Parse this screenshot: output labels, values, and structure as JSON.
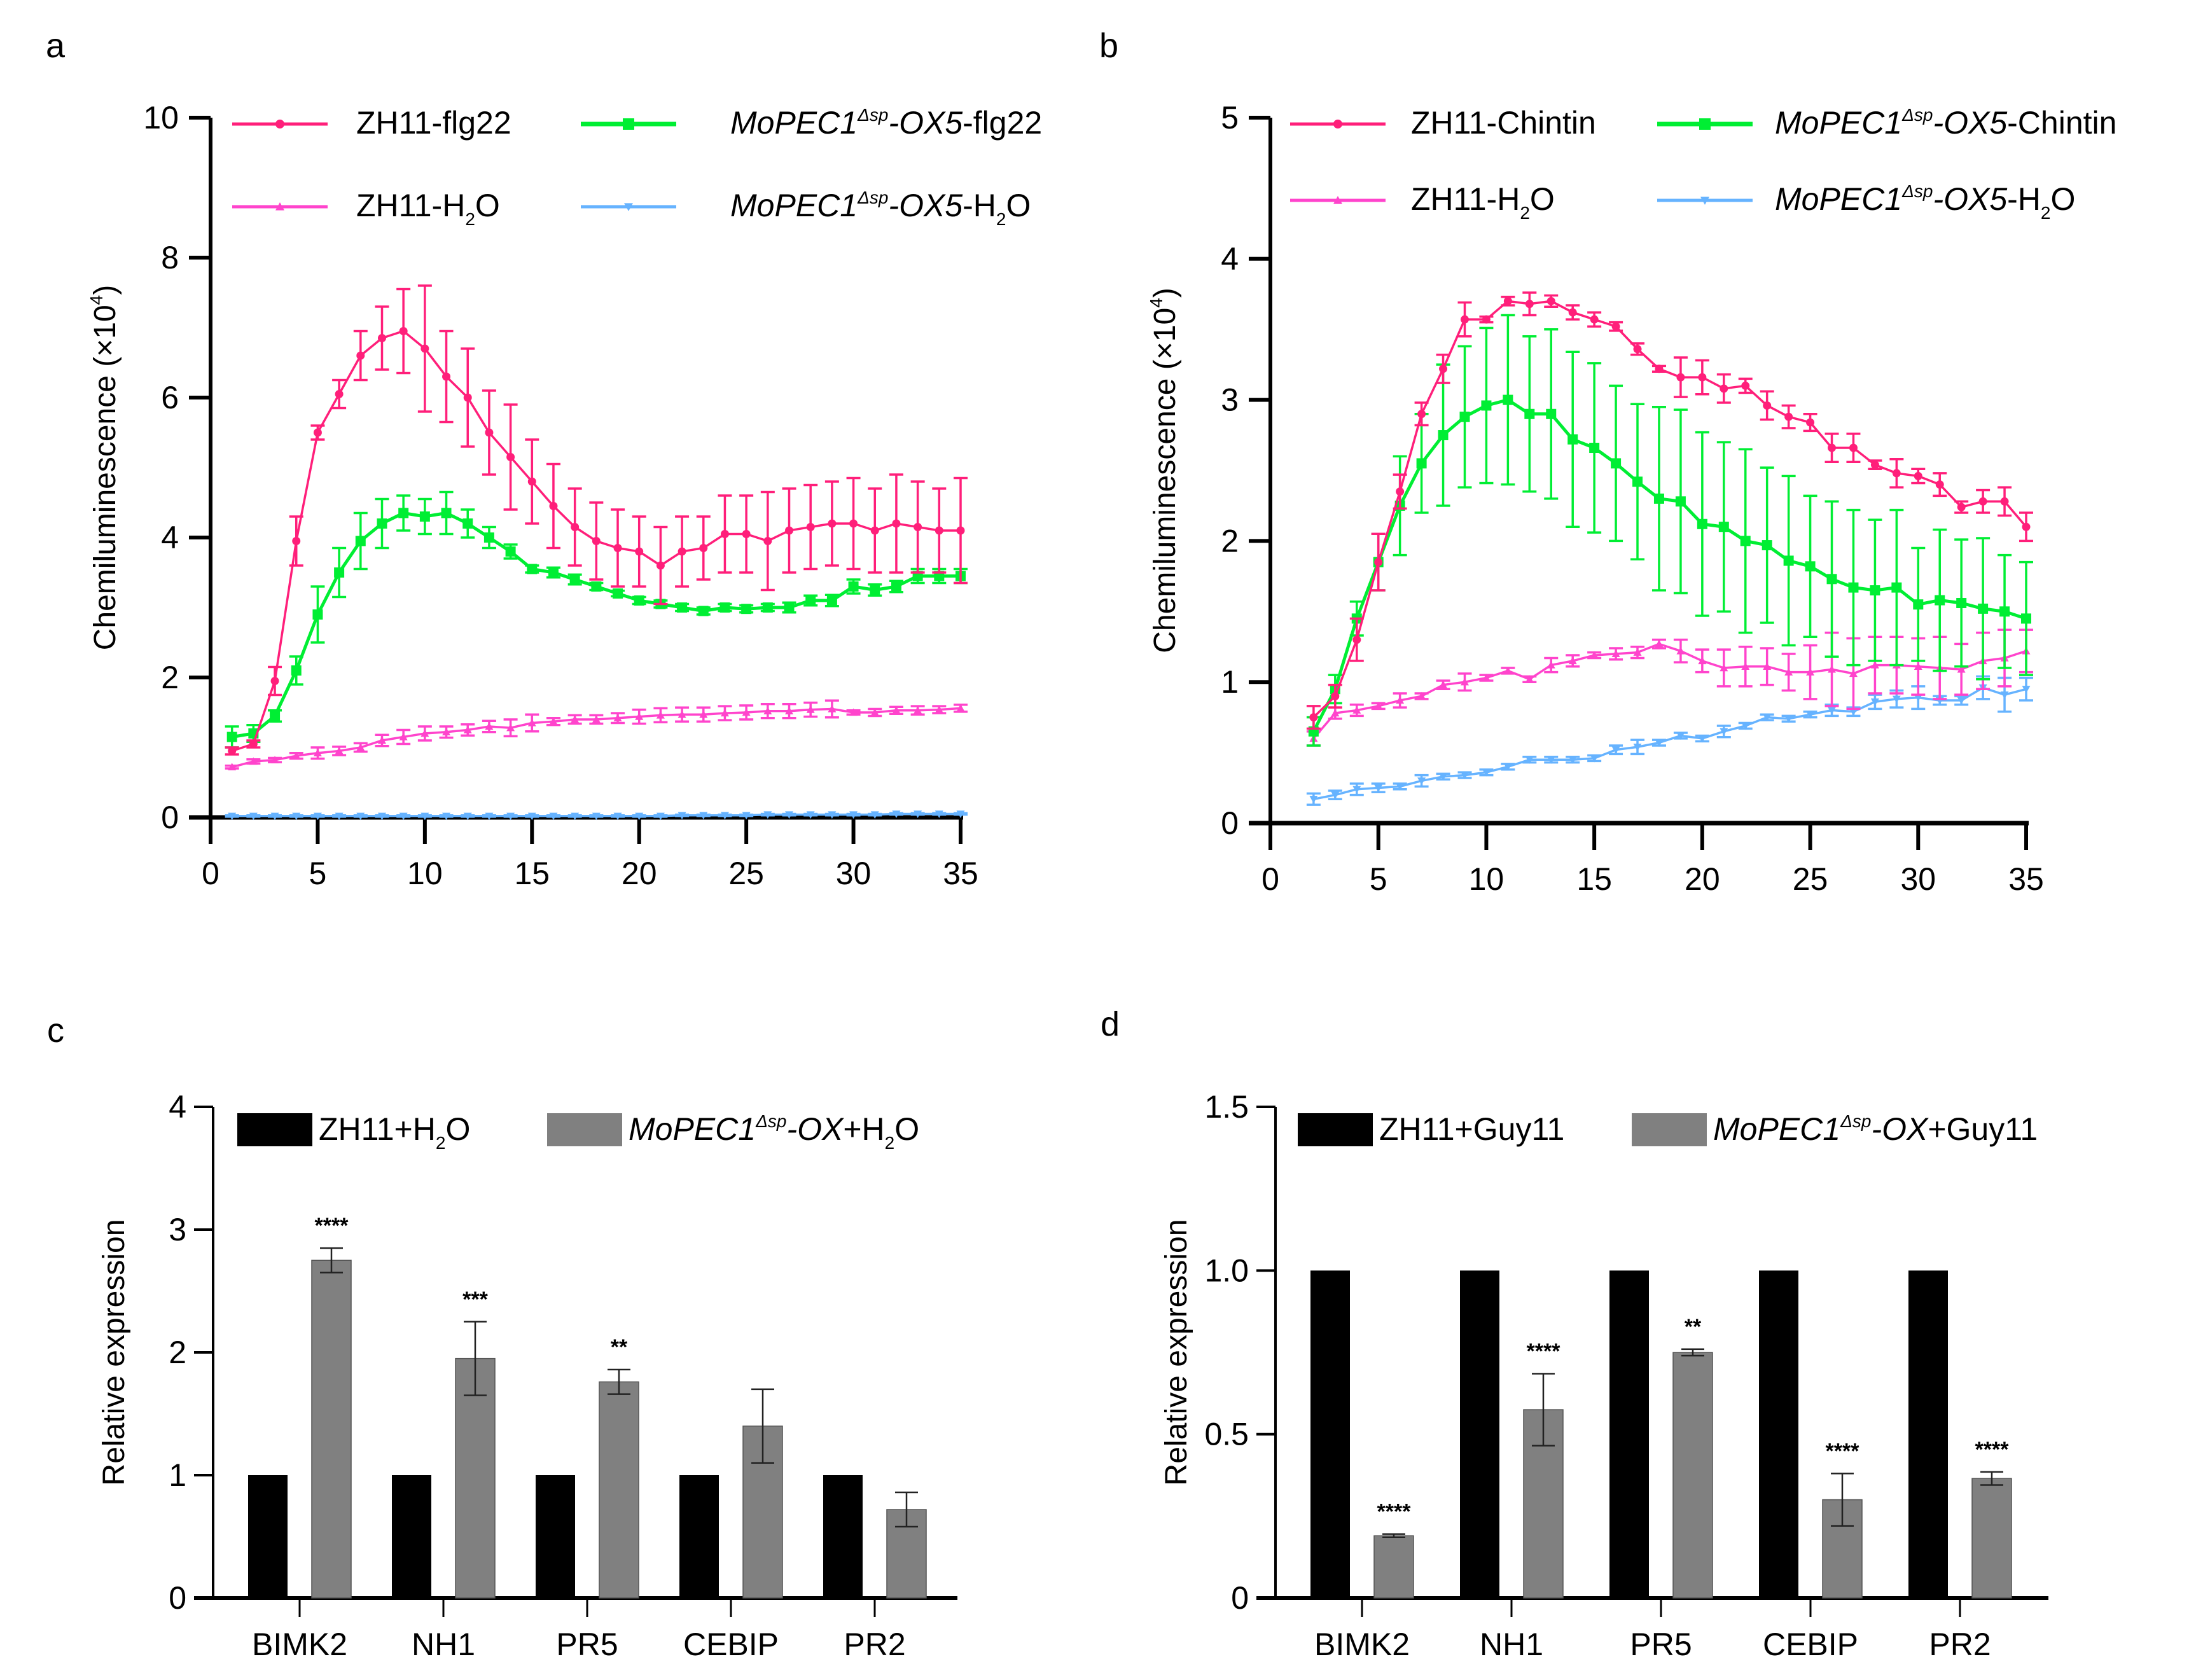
{
  "figure": {
    "panel_labels": [
      "a",
      "b",
      "c",
      "d"
    ]
  },
  "chart_data": [
    {
      "panel": "a",
      "type": "line",
      "xlabel": "",
      "ylabel": "Chemiluminescence (×10⁴)",
      "ylabel_main": "Chemiluminescence (×10",
      "ylabel_sup": "4",
      "ylabel_end": ")",
      "xlim": [
        0,
        35
      ],
      "ylim": [
        0,
        10
      ],
      "xticks": [
        0,
        5,
        10,
        15,
        20,
        25,
        30,
        35
      ],
      "yticks": [
        0,
        2,
        4,
        6,
        8,
        10
      ],
      "grid": false,
      "legend_position": "top",
      "x": [
        1,
        2,
        3,
        4,
        5,
        6,
        7,
        8,
        9,
        10,
        11,
        12,
        13,
        14,
        15,
        16,
        17,
        18,
        19,
        20,
        21,
        22,
        23,
        24,
        25,
        26,
        27,
        28,
        29,
        30,
        31,
        32,
        33,
        34,
        35
      ],
      "series": [
        {
          "name": "ZH11-flg22",
          "legend": {
            "pre": "ZH11-flg22",
            "italic": "",
            "sup": "",
            "post": "",
            "sub": "",
            "tail": ""
          },
          "color": "#ff1f7a",
          "marker": "circle",
          "values": [
            0.95,
            1.05,
            1.95,
            3.95,
            5.5,
            6.05,
            6.6,
            6.85,
            6.95,
            6.7,
            6.3,
            6.0,
            5.5,
            5.15,
            4.8,
            4.45,
            4.15,
            3.95,
            3.85,
            3.8,
            3.6,
            3.8,
            3.85,
            4.05,
            4.05,
            3.95,
            4.1,
            4.15,
            4.2,
            4.2,
            4.1,
            4.2,
            4.15,
            4.1,
            4.1
          ],
          "errors": [
            0.05,
            0.05,
            0.2,
            0.35,
            0.1,
            0.2,
            0.35,
            0.45,
            0.6,
            0.9,
            0.65,
            0.7,
            0.6,
            0.75,
            0.6,
            0.6,
            0.55,
            0.55,
            0.55,
            0.5,
            0.55,
            0.5,
            0.45,
            0.55,
            0.55,
            0.7,
            0.6,
            0.6,
            0.6,
            0.65,
            0.6,
            0.7,
            0.65,
            0.6,
            0.75
          ]
        },
        {
          "name": "MoPEC1Δsp-OX5-flg22",
          "legend": {
            "pre": "",
            "italic": "MoPEC1",
            "sup": "Δsp",
            "post": "-OX5",
            "sub": "",
            "tail": "-flg22"
          },
          "color": "#00ee33",
          "marker": "square",
          "values": [
            1.15,
            1.2,
            1.45,
            2.1,
            2.9,
            3.5,
            3.95,
            4.2,
            4.35,
            4.3,
            4.35,
            4.2,
            4.0,
            3.8,
            3.55,
            3.5,
            3.4,
            3.3,
            3.2,
            3.1,
            3.05,
            3.0,
            2.95,
            3.0,
            2.98,
            3.0,
            3.0,
            3.1,
            3.1,
            3.3,
            3.25,
            3.3,
            3.45,
            3.45,
            3.45
          ],
          "errors": [
            0.15,
            0.12,
            0.08,
            0.2,
            0.4,
            0.35,
            0.4,
            0.35,
            0.25,
            0.25,
            0.3,
            0.2,
            0.15,
            0.1,
            0.05,
            0.07,
            0.07,
            0.05,
            0.04,
            0.05,
            0.05,
            0.05,
            0.05,
            0.05,
            0.05,
            0.05,
            0.07,
            0.07,
            0.08,
            0.1,
            0.08,
            0.08,
            0.1,
            0.1,
            0.1
          ]
        },
        {
          "name": "ZH11-H2O",
          "legend": {
            "pre": "ZH11-H",
            "italic": "",
            "sup": "",
            "post": "",
            "sub": "2",
            "tail": "O"
          },
          "color": "#ff44cc",
          "marker": "triangle-up",
          "values": [
            0.72,
            0.8,
            0.82,
            0.88,
            0.92,
            0.95,
            1.0,
            1.1,
            1.15,
            1.2,
            1.22,
            1.25,
            1.3,
            1.28,
            1.35,
            1.37,
            1.4,
            1.4,
            1.42,
            1.44,
            1.46,
            1.47,
            1.47,
            1.49,
            1.5,
            1.52,
            1.52,
            1.54,
            1.55,
            1.5,
            1.5,
            1.53,
            1.53,
            1.54,
            1.56
          ],
          "errors": [
            0.02,
            0.03,
            0.03,
            0.04,
            0.08,
            0.06,
            0.06,
            0.08,
            0.1,
            0.1,
            0.08,
            0.08,
            0.08,
            0.12,
            0.12,
            0.05,
            0.06,
            0.06,
            0.07,
            0.1,
            0.1,
            0.1,
            0.1,
            0.1,
            0.1,
            0.1,
            0.1,
            0.1,
            0.12,
            0.03,
            0.05,
            0.05,
            0.06,
            0.05,
            0.05
          ]
        },
        {
          "name": "MoPEC1Δsp-OX5-H2O",
          "legend": {
            "pre": "",
            "italic": "MoPEC1",
            "sup": "Δsp",
            "post": "-OX5",
            "sub": "2",
            "tail": "-H|O"
          },
          "color": "#66b3ff",
          "marker": "triangle-down",
          "values": [
            0.02,
            0.02,
            0.02,
            0.02,
            0.02,
            0.02,
            0.02,
            0.02,
            0.02,
            0.02,
            0.02,
            0.02,
            0.02,
            0.02,
            0.02,
            0.02,
            0.02,
            0.02,
            0.02,
            0.02,
            0.02,
            0.03,
            0.03,
            0.03,
            0.03,
            0.04,
            0.04,
            0.04,
            0.04,
            0.04,
            0.04,
            0.05,
            0.05,
            0.05,
            0.05
          ],
          "errors": [
            0.01,
            0.01,
            0.01,
            0.01,
            0.01,
            0.01,
            0.01,
            0.01,
            0.01,
            0.01,
            0.01,
            0.01,
            0.01,
            0.01,
            0.01,
            0.01,
            0.01,
            0.01,
            0.01,
            0.01,
            0.01,
            0.01,
            0.01,
            0.01,
            0.01,
            0.01,
            0.01,
            0.01,
            0.01,
            0.01,
            0.01,
            0.01,
            0.01,
            0.01,
            0.01
          ]
        }
      ]
    },
    {
      "panel": "b",
      "type": "line",
      "xlabel": "",
      "ylabel": "Chemiluminescence (×10⁴)",
      "ylabel_main": "Chemiluminescence (×10",
      "ylabel_sup": "4",
      "ylabel_end": ")",
      "xlim": [
        0,
        35
      ],
      "ylim": [
        0,
        5
      ],
      "xticks": [
        0,
        5,
        10,
        15,
        20,
        25,
        30,
        35
      ],
      "yticks": [
        0,
        1,
        2,
        3,
        4,
        5
      ],
      "grid": false,
      "legend_position": "top",
      "x": [
        2,
        3,
        4,
        5,
        6,
        7,
        8,
        9,
        10,
        11,
        12,
        13,
        14,
        15,
        16,
        17,
        18,
        19,
        20,
        21,
        22,
        23,
        24,
        25,
        26,
        27,
        28,
        29,
        30,
        31,
        32,
        33,
        34,
        35
      ],
      "series": [
        {
          "name": "ZH11-Chintin",
          "legend": {
            "pre": "ZH11-Chintin",
            "italic": "",
            "sup": "",
            "post": "",
            "sub": "",
            "tail": ""
          },
          "color": "#ff1f7a",
          "marker": "circle",
          "values": [
            0.75,
            0.9,
            1.3,
            1.85,
            2.35,
            2.9,
            3.22,
            3.57,
            3.57,
            3.7,
            3.68,
            3.7,
            3.62,
            3.57,
            3.52,
            3.36,
            3.22,
            3.16,
            3.16,
            3.08,
            3.1,
            2.96,
            2.88,
            2.84,
            2.66,
            2.66,
            2.54,
            2.48,
            2.46,
            2.4,
            2.24,
            2.28,
            2.28,
            2.1
          ],
          "errors": [
            0.08,
            0.08,
            0.15,
            0.2,
            0.12,
            0.08,
            0.1,
            0.12,
            0.02,
            0.03,
            0.08,
            0.04,
            0.05,
            0.05,
            0.03,
            0.04,
            0.02,
            0.14,
            0.12,
            0.1,
            0.05,
            0.1,
            0.08,
            0.06,
            0.1,
            0.1,
            0.03,
            0.1,
            0.05,
            0.08,
            0.04,
            0.08,
            0.1,
            0.1
          ]
        },
        {
          "name": "MoPEC1Δsp-OX5-Chintin",
          "legend": {
            "pre": "",
            "italic": "MoPEC1",
            "sup": "Δsp",
            "post": "-OX5",
            "sub": "",
            "tail": "-Chintin"
          },
          "color": "#00ee33",
          "marker": "square",
          "values": [
            0.65,
            0.95,
            1.45,
            1.85,
            2.25,
            2.55,
            2.75,
            2.88,
            2.96,
            3.0,
            2.9,
            2.9,
            2.72,
            2.66,
            2.55,
            2.42,
            2.3,
            2.28,
            2.12,
            2.1,
            2.0,
            1.97,
            1.86,
            1.82,
            1.73,
            1.67,
            1.65,
            1.67,
            1.55,
            1.58,
            1.56,
            1.52,
            1.5,
            1.45
          ],
          "errors": [
            0.1,
            0.1,
            0.12,
            0.2,
            0.35,
            0.35,
            0.5,
            0.5,
            0.55,
            0.6,
            0.55,
            0.6,
            0.62,
            0.6,
            0.55,
            0.55,
            0.65,
            0.65,
            0.65,
            0.6,
            0.65,
            0.55,
            0.6,
            0.5,
            0.55,
            0.55,
            0.5,
            0.55,
            0.4,
            0.5,
            0.45,
            0.5,
            0.4,
            0.4
          ]
        },
        {
          "name": "ZH11-H2O",
          "legend": {
            "pre": "ZH11-H",
            "italic": "",
            "sup": "",
            "post": "",
            "sub": "2",
            "tail": "O"
          },
          "color": "#ff44cc",
          "marker": "triangle-up",
          "values": [
            0.6,
            0.78,
            0.8,
            0.83,
            0.87,
            0.9,
            0.98,
            1.0,
            1.03,
            1.08,
            1.02,
            1.12,
            1.15,
            1.19,
            1.2,
            1.21,
            1.27,
            1.22,
            1.15,
            1.1,
            1.11,
            1.11,
            1.07,
            1.07,
            1.09,
            1.06,
            1.12,
            1.12,
            1.11,
            1.1,
            1.09,
            1.15,
            1.17,
            1.22
          ],
          "errors": [
            0.05,
            0.04,
            0.04,
            0.02,
            0.05,
            0.02,
            0.03,
            0.06,
            0.02,
            0.02,
            0.02,
            0.05,
            0.04,
            0.02,
            0.04,
            0.04,
            0.03,
            0.08,
            0.08,
            0.13,
            0.14,
            0.13,
            0.13,
            0.19,
            0.26,
            0.25,
            0.2,
            0.2,
            0.2,
            0.22,
            0.18,
            0.2,
            0.2,
            0.15
          ]
        },
        {
          "name": "MoPEC1Δsp-OX5-H2O",
          "legend": {
            "pre": "",
            "italic": "MoPEC1",
            "sup": "Δsp",
            "post": "-OX5",
            "sub": "2",
            "tail": "-H|O"
          },
          "color": "#66b3ff",
          "marker": "triangle-down",
          "values": [
            0.17,
            0.2,
            0.24,
            0.25,
            0.26,
            0.3,
            0.33,
            0.34,
            0.36,
            0.4,
            0.45,
            0.45,
            0.45,
            0.46,
            0.52,
            0.54,
            0.57,
            0.62,
            0.6,
            0.65,
            0.69,
            0.75,
            0.74,
            0.77,
            0.8,
            0.79,
            0.86,
            0.88,
            0.89,
            0.87,
            0.87,
            0.96,
            0.91,
            0.95
          ],
          "errors": [
            0.04,
            0.03,
            0.04,
            0.03,
            0.02,
            0.04,
            0.02,
            0.02,
            0.02,
            0.02,
            0.02,
            0.02,
            0.02,
            0.02,
            0.03,
            0.05,
            0.02,
            0.02,
            0.02,
            0.04,
            0.02,
            0.02,
            0.02,
            0.02,
            0.04,
            0.03,
            0.05,
            0.06,
            0.08,
            0.03,
            0.03,
            0.08,
            0.12,
            0.08
          ]
        }
      ]
    },
    {
      "panel": "c",
      "type": "bar",
      "title": "",
      "xlabel": "",
      "ylabel": "Relative expression",
      "ylim": [
        0,
        4
      ],
      "yticks": [
        "0",
        "1",
        "2",
        "3",
        "4"
      ],
      "ytick_values": [
        0,
        1,
        2,
        3,
        4
      ],
      "grid": false,
      "legend_position": "top",
      "categories": [
        "BIMK2",
        "NH1",
        "PR5",
        "CEBIP",
        "PR2"
      ],
      "series": [
        {
          "name": "ZH11+H2O",
          "legend": {
            "pre": "ZH11+H",
            "italic": "",
            "sup": "",
            "post": "",
            "sub": "2",
            "tail": "O"
          },
          "color": "#000000",
          "values": [
            1,
            1,
            1,
            1,
            1
          ],
          "errors": [
            0,
            0,
            0,
            0,
            0
          ],
          "significance": [
            "",
            "",
            "",
            "",
            ""
          ]
        },
        {
          "name": "MoPEC1Δsp-OX+H2O",
          "legend": {
            "pre": "",
            "italic": "MoPEC1",
            "sup": "Δsp",
            "post": "-OX",
            "sub": "2",
            "tail": "+H|O"
          },
          "color": "#808080",
          "values": [
            2.75,
            1.95,
            1.76,
            1.4,
            0.72
          ],
          "errors": [
            0.1,
            0.3,
            0.1,
            0.3,
            0.14
          ],
          "significance": [
            "****",
            "***",
            "**",
            "",
            ""
          ]
        }
      ]
    },
    {
      "panel": "d",
      "type": "bar",
      "title": "",
      "xlabel": "",
      "ylabel": "Relative expression",
      "ylim": [
        0,
        1.5
      ],
      "yticks": [
        "0",
        "0.5",
        "1.0",
        "1.5"
      ],
      "ytick_values": [
        0,
        0.5,
        1.0,
        1.5
      ],
      "grid": false,
      "legend_position": "top",
      "categories": [
        "BIMK2",
        "NH1",
        "PR5",
        "CEBIP",
        "PR2"
      ],
      "series": [
        {
          "name": "ZH11+Guy11",
          "legend": {
            "pre": "ZH11+Guy11",
            "italic": "",
            "sup": "",
            "post": "",
            "sub": "",
            "tail": ""
          },
          "color": "#000000",
          "values": [
            1,
            1,
            1,
            1,
            1
          ],
          "errors": [
            0,
            0,
            0,
            0,
            0
          ],
          "significance": [
            "",
            "",
            "",
            "",
            ""
          ]
        },
        {
          "name": "MoPEC1Δsp-OX+Guy11",
          "legend": {
            "pre": "",
            "italic": "MoPEC1",
            "sup": "Δsp",
            "post": "-OX",
            "sub": "",
            "tail": "+Guy11"
          },
          "color": "#808080",
          "values": [
            0.19,
            0.575,
            0.75,
            0.3,
            0.365
          ],
          "errors": [
            0.005,
            0.11,
            0.01,
            0.08,
            0.02
          ],
          "significance": [
            "****",
            "****",
            "**",
            "****",
            "****"
          ]
        }
      ]
    }
  ]
}
